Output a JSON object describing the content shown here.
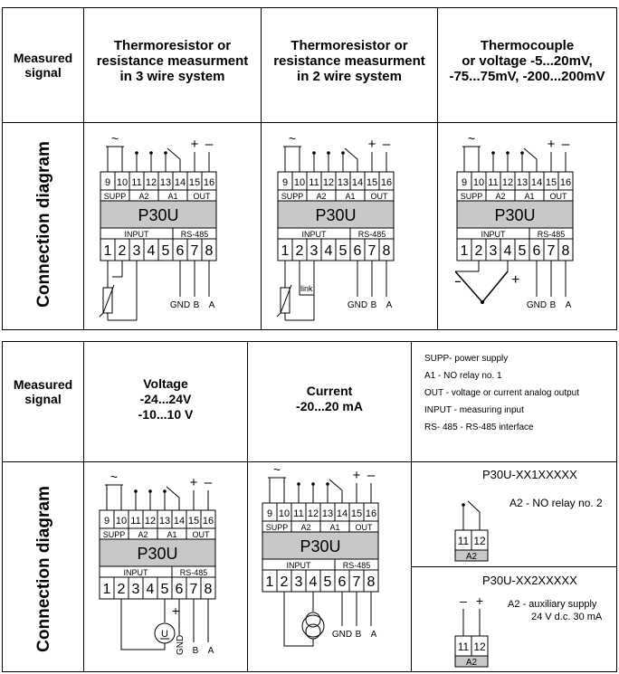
{
  "top": {
    "measured_signal": "Measured\nsignal",
    "connection_diagram": "Connection diagram",
    "columns": [
      {
        "title": "Thermoresistor  or\nresistance measurment\nin 3 wire system"
      },
      {
        "title": "Thermoresistor  or\nresistance measurment\nin 2 wire system",
        "link_label": "link"
      },
      {
        "title": "Thermocouple\nor voltage -5...20mV,\n-75...75mV, -200...200mV"
      }
    ]
  },
  "bottom": {
    "measured_signal": "Measured\nsignal",
    "connection_diagram": "Connection diagram",
    "columns": [
      {
        "title": "Voltage\n-24...24V\n-10...10 V",
        "source_label": "U"
      },
      {
        "title": "Current\n-20...20 mA"
      }
    ],
    "legend": [
      "SUPP- power supply",
      "A1 - NO relay no. 1",
      "OUT - voltage or current analog output",
      "INPUT - measuring input",
      "RS- 485 - RS-485 interface"
    ],
    "variant1": {
      "title": "P30U-XX1XXXXX",
      "desc": "A2 - NO relay no. 2"
    },
    "variant2": {
      "title": "P30U-XX2XXXXX",
      "desc": "A2 - auxiliary supply",
      "desc2": "24 V d.c.  30 mA"
    }
  },
  "device": {
    "name": "P30U",
    "top_terminals": [
      "9",
      "10",
      "11",
      "12",
      "13",
      "14",
      "15",
      "16"
    ],
    "bottom_terminals": [
      "1",
      "2",
      "3",
      "4",
      "5",
      "6",
      "7",
      "8"
    ],
    "top_groups": [
      "SUPP",
      "A2",
      "A1",
      "OUT"
    ],
    "bottom_groups": [
      "INPUT",
      "RS-485"
    ],
    "gnd": "GND",
    "b": "B",
    "a": "A",
    "mini_terminals": [
      "11",
      "12"
    ],
    "mini_label": "A2",
    "plus": "+",
    "minus": "–",
    "ac": "~"
  }
}
